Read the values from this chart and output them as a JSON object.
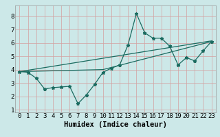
{
  "title": "",
  "xlabel": "Humidex (Indice chaleur)",
  "bg_color": "#cce8e8",
  "grid_color_major": "#d4a0a0",
  "grid_color_minor": "#d4a0a0",
  "line_color": "#1a6b60",
  "xlim": [
    -0.5,
    23.5
  ],
  "ylim": [
    0.8,
    8.8
  ],
  "xticks": [
    0,
    1,
    2,
    3,
    4,
    5,
    6,
    7,
    8,
    9,
    10,
    11,
    12,
    13,
    14,
    15,
    16,
    17,
    18,
    19,
    20,
    21,
    22,
    23
  ],
  "yticks": [
    1,
    2,
    3,
    4,
    5,
    6,
    7,
    8
  ],
  "series1_x": [
    0,
    1,
    2,
    3,
    4,
    5,
    6,
    7,
    8,
    9,
    10,
    11,
    12,
    13,
    14,
    15,
    16,
    17,
    18,
    19,
    20,
    21,
    22,
    23
  ],
  "series1_y": [
    3.85,
    3.8,
    3.35,
    2.55,
    2.65,
    2.7,
    2.75,
    1.45,
    2.1,
    2.9,
    3.8,
    4.1,
    4.35,
    5.85,
    8.2,
    6.75,
    6.35,
    6.35,
    5.75,
    4.35,
    4.9,
    4.65,
    5.4,
    6.1
  ],
  "series2_x": [
    0,
    23
  ],
  "series2_y": [
    3.85,
    6.15
  ],
  "series3_x": [
    0,
    10,
    23
  ],
  "series3_y": [
    3.85,
    4.0,
    6.1
  ],
  "font_size": 6.5,
  "xlabel_fontsize": 7.5,
  "marker_size": 3.5,
  "linewidth": 0.9
}
